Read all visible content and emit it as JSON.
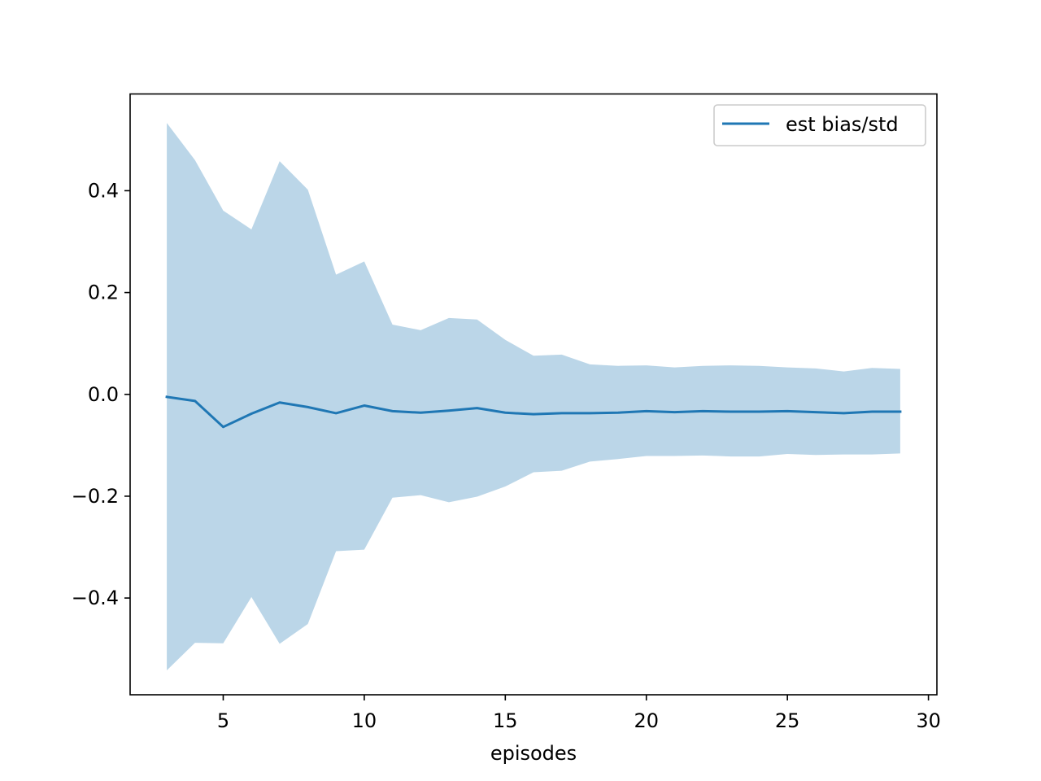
{
  "chart_data": {
    "type": "line",
    "title": "",
    "xlabel": "episodes",
    "ylabel": "",
    "xlim": [
      1.7,
      30.3
    ],
    "ylim": [
      -0.59,
      0.59
    ],
    "xticks": [
      5,
      10,
      15,
      20,
      25,
      30
    ],
    "yticks": [
      -0.4,
      -0.2,
      0.0,
      0.2,
      0.4
    ],
    "xtick_labels": [
      "5",
      "10",
      "15",
      "20",
      "25",
      "30"
    ],
    "ytick_labels": [
      "−0.4",
      "−0.2",
      "0.0",
      "0.2",
      "0.4"
    ],
    "grid": false,
    "legend_position": "top-right",
    "x": [
      3,
      4,
      5,
      6,
      7,
      8,
      9,
      10,
      11,
      12,
      13,
      14,
      15,
      16,
      17,
      18,
      19,
      20,
      21,
      22,
      23,
      24,
      25,
      26,
      27,
      28,
      29
    ],
    "series": [
      {
        "name": "est bias/std",
        "color": "#1f77b4",
        "band_color": "#1f77b4",
        "band_opacity": 0.3,
        "values": [
          -0.005,
          -0.013,
          -0.064,
          -0.038,
          -0.016,
          -0.025,
          -0.037,
          -0.022,
          -0.033,
          -0.036,
          -0.032,
          -0.027,
          -0.036,
          -0.039,
          -0.037,
          -0.037,
          -0.036,
          -0.033,
          -0.035,
          -0.033,
          -0.034,
          -0.034,
          -0.033,
          -0.035,
          -0.037,
          -0.034,
          -0.034
        ],
        "upper": [
          0.533,
          0.46,
          0.361,
          0.324,
          0.458,
          0.402,
          0.235,
          0.261,
          0.137,
          0.126,
          0.15,
          0.147,
          0.107,
          0.076,
          0.078,
          0.059,
          0.056,
          0.057,
          0.053,
          0.056,
          0.057,
          0.056,
          0.053,
          0.051,
          0.045,
          0.052,
          0.05
        ],
        "lower": [
          -0.542,
          -0.488,
          -0.489,
          -0.398,
          -0.49,
          -0.451,
          -0.308,
          -0.305,
          -0.203,
          -0.198,
          -0.212,
          -0.201,
          -0.181,
          -0.153,
          -0.15,
          -0.132,
          -0.127,
          -0.121,
          -0.121,
          -0.12,
          -0.122,
          -0.122,
          -0.117,
          -0.119,
          -0.118,
          -0.118,
          -0.116
        ]
      }
    ]
  }
}
